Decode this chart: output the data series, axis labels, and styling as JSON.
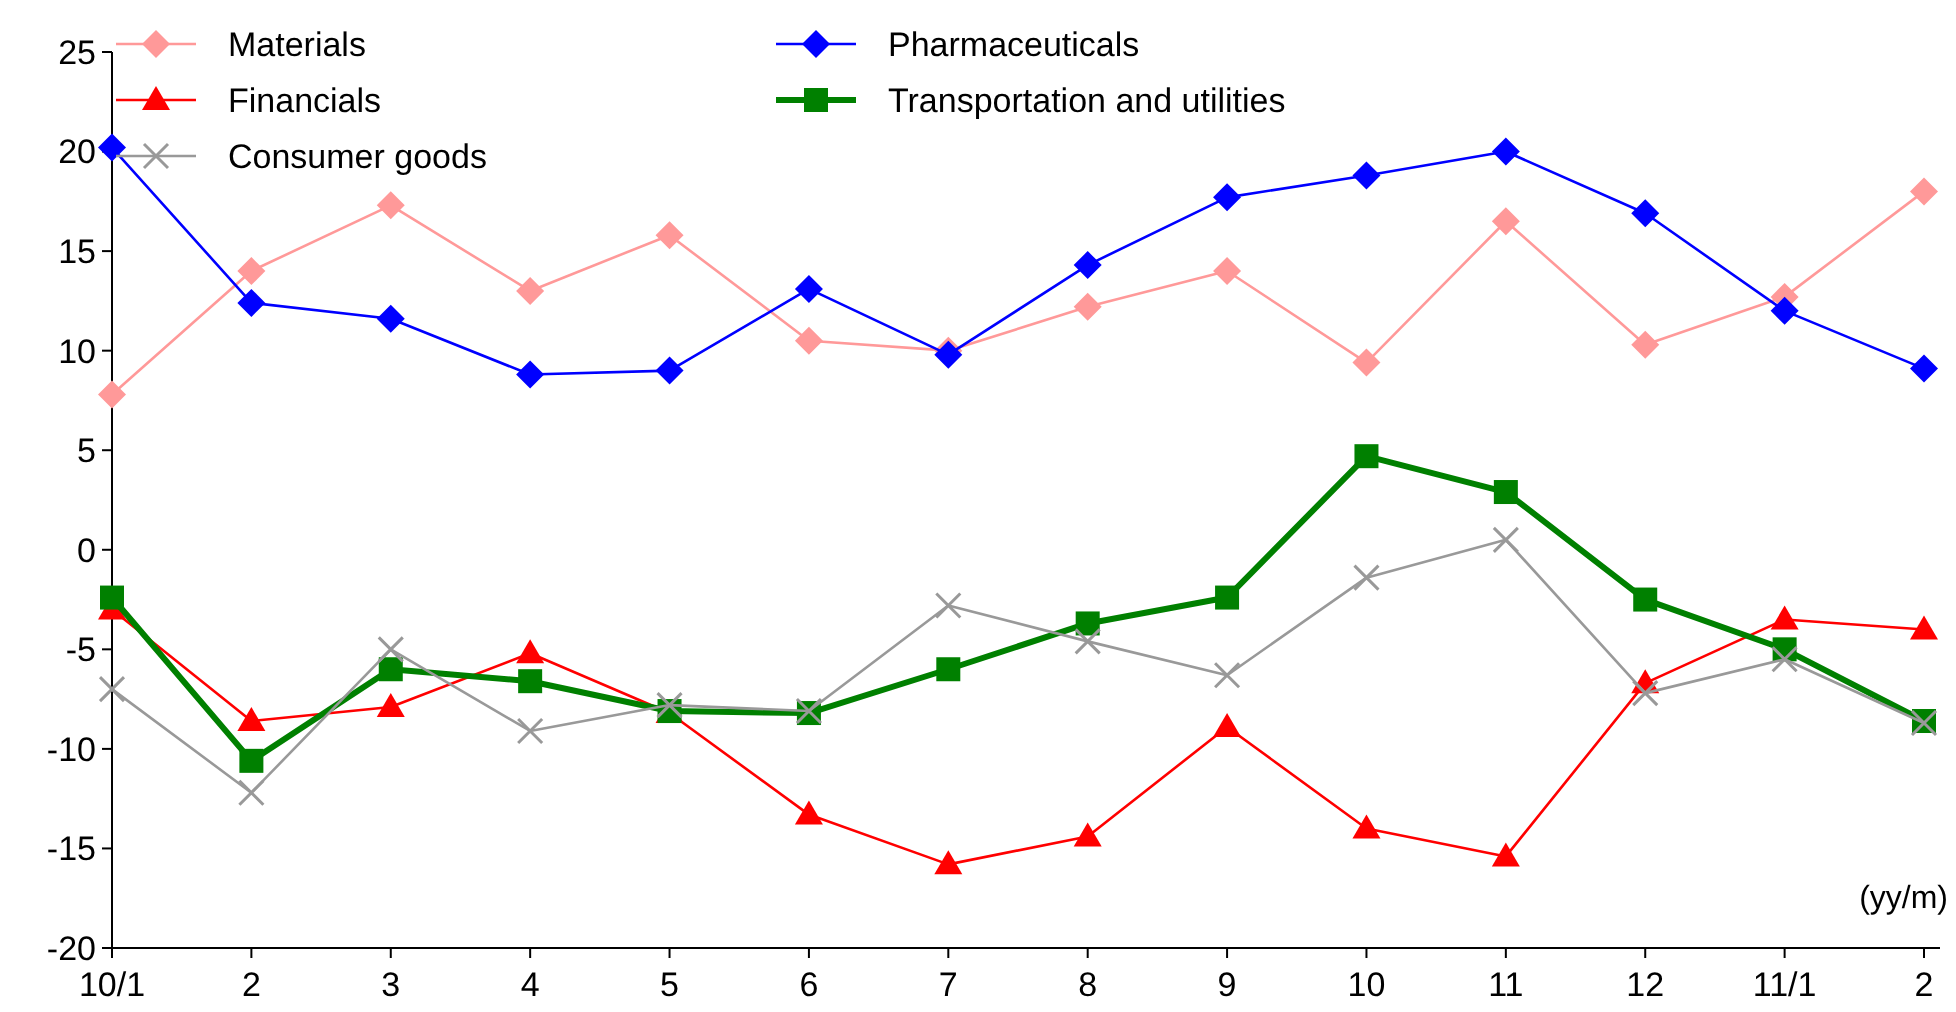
{
  "chart_data": {
    "type": "line",
    "categories": [
      "10/1",
      "2",
      "3",
      "4",
      "5",
      "6",
      "7",
      "8",
      "9",
      "10",
      "11",
      "12",
      "11/1",
      "2"
    ],
    "ylim": [
      -20,
      25
    ],
    "yticks": [
      -20,
      -15,
      -10,
      -5,
      0,
      5,
      10,
      15,
      20,
      25
    ],
    "grid": false,
    "legend": "top",
    "line_style": "solid",
    "annotations": [
      "(yy/m)"
    ],
    "series": [
      {
        "name": "Materials",
        "color": "#ff9999",
        "marker": "diamond",
        "values": [
          7.8,
          14.0,
          17.3,
          13.0,
          15.8,
          10.5,
          10.0,
          12.2,
          14.0,
          9.4,
          16.5,
          10.3,
          12.7,
          18.0
        ]
      },
      {
        "name": "Pharmaceuticals",
        "color": "#0000ff",
        "marker": "diamond",
        "values": [
          20.2,
          12.4,
          11.6,
          8.8,
          9.0,
          13.1,
          9.8,
          14.3,
          17.7,
          18.8,
          20.0,
          16.9,
          12.0,
          9.1
        ]
      },
      {
        "name": "Financials",
        "color": "#ff0000",
        "marker": "triangle",
        "values": [
          -3.0,
          -8.6,
          -7.9,
          -5.2,
          -8.2,
          -13.3,
          -15.8,
          -14.4,
          -8.9,
          -14.0,
          -15.4,
          -6.7,
          -3.5,
          -4.0
        ]
      },
      {
        "name": "Transportation and utilities",
        "color": "#008000",
        "marker": "square",
        "values": [
          -2.4,
          -10.6,
          -6.0,
          -6.6,
          -8.1,
          -8.2,
          -6.0,
          -3.7,
          -2.4,
          4.7,
          2.9,
          -2.5,
          -5.0,
          -8.6
        ]
      },
      {
        "name": "Consumer goods",
        "color": "#999999",
        "marker": "cross",
        "values": [
          -7.0,
          -12.2,
          -5.0,
          -9.1,
          -7.8,
          -8.1,
          -2.8,
          -4.6,
          -6.3,
          -1.4,
          0.5,
          -7.2,
          -5.5,
          -8.7
        ]
      }
    ]
  }
}
